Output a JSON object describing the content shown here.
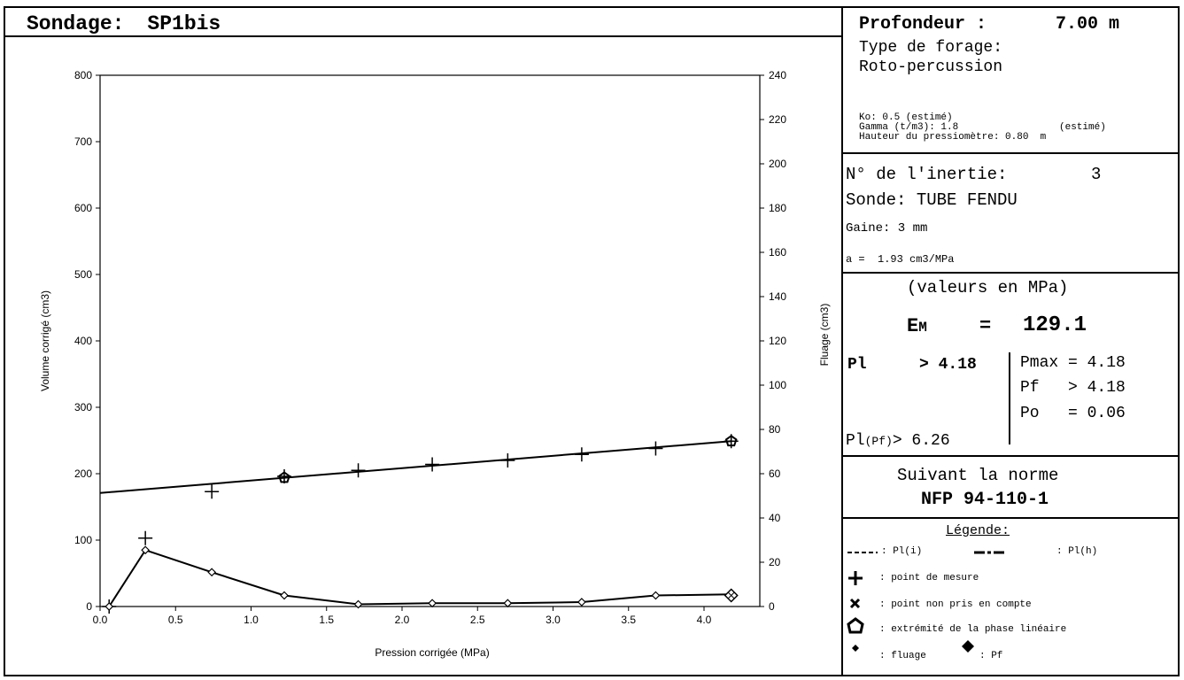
{
  "header": {
    "title_label": "Sondage:",
    "title_value": "SP1bis"
  },
  "info": {
    "depth_label": "Profondeur :",
    "depth_value": "7.00 m",
    "drilling_label": "Type de forage:",
    "drilling_value": "Roto-percussion",
    "ko": "Ko: 0.5 (estimé)",
    "gamma": "Gamma (t/m3): 1.8",
    "gamma_note": "(estimé)",
    "height": "Hauteur du pressiomètre: 0.80  m"
  },
  "probe": {
    "inertia_label": "N° de l'inertie:",
    "inertia_value": "3",
    "sonde": "Sonde: TUBE FENDU",
    "gaine": "Gaine: 3 mm",
    "a_value": "a =  1.93 cm3/MPa"
  },
  "results": {
    "units": "(valeurs en MPa)",
    "em_label": "EM",
    "em_sub": "M",
    "em_eq": "=",
    "em_value": "129.1",
    "pl_label": "Pl",
    "pl_value": "> 4.18",
    "pmax": "Pmax = 4.18",
    "pf": "Pf   > 4.18",
    "po": "Po   = 0.06",
    "plpf_label": "Pl",
    "plpf_sub": "(Pf)",
    "plpf_value": "> 6.26"
  },
  "norm": {
    "line1": "Suivant la norme",
    "line2": "NFP 94-110-1"
  },
  "legend": {
    "title": "Légende:",
    "pli": ": Pl(i)",
    "plh": ": Pl(h)",
    "mesure": ": point de mesure",
    "non_pris": ": point non pris en compte",
    "extremite": ": extrémité de la phase linéaire",
    "fluage": ": fluage",
    "pf": ": Pf"
  },
  "chart_data": {
    "type": "scatter",
    "xlabel": "Pression corrigée (MPa)",
    "ylabel": "Volume corrigé (cm3)",
    "y2label": "Fluage (cm3)",
    "xlim": [
      0.0,
      4.2
    ],
    "ylim": [
      0,
      800
    ],
    "y2lim": [
      0,
      240
    ],
    "x_ticks": [
      "0.0",
      "0.5",
      "1.0",
      "1.5",
      "2.0",
      "2.5",
      "3.0",
      "3.5",
      "4.0"
    ],
    "y_ticks": [
      "0",
      "100",
      "200",
      "300",
      "400",
      "500",
      "600",
      "700",
      "800"
    ],
    "y2_ticks": [
      "0",
      "20",
      "40",
      "60",
      "80",
      "100",
      "120",
      "140",
      "160",
      "180",
      "200",
      "220",
      "240"
    ],
    "series": [
      {
        "marker": "plus",
        "x": [
          0.06,
          0.3,
          0.74,
          1.22,
          1.71,
          2.2,
          2.7,
          3.19,
          3.68,
          4.18
        ],
        "y": [
          0,
          103,
          173,
          196,
          205,
          214,
          220,
          229,
          238,
          249
        ]
      },
      {
        "marker": "line",
        "x": [
          0.0,
          4.18
        ],
        "y": [
          171,
          249
        ]
      },
      {
        "marker": "pentagon",
        "x": [
          1.22,
          4.18
        ],
        "y": [
          194,
          249
        ]
      },
      {
        "marker": "small-diamond-line",
        "axis": "right",
        "x": [
          0.06,
          0.3,
          0.74,
          1.22,
          1.71,
          2.2,
          2.7,
          3.19,
          3.68,
          4.18
        ],
        "y": [
          0,
          25.5,
          15.5,
          5,
          1,
          1.5,
          1.5,
          2,
          5,
          5.5
        ]
      },
      {
        "marker": "big-diamond",
        "axis": "right",
        "x": [
          4.18
        ],
        "y": [
          5
        ]
      }
    ]
  }
}
